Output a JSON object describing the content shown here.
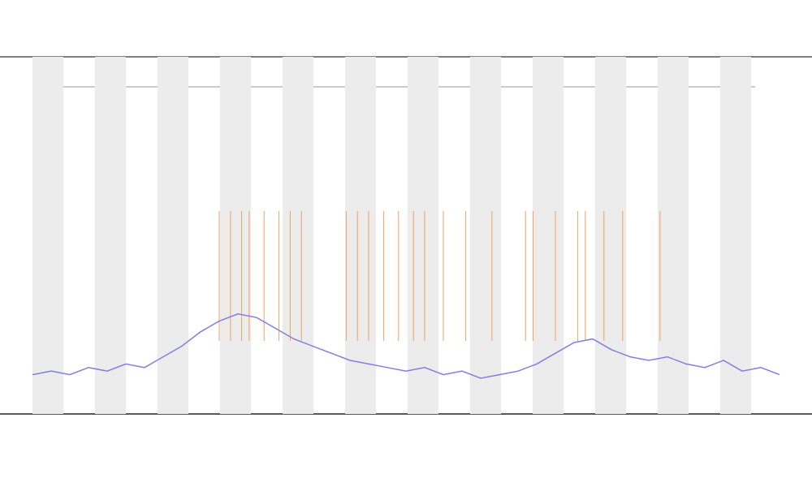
{
  "chart_data": {
    "type": "line",
    "x": [
      0,
      2.5,
      5,
      7.5,
      10,
      12.5,
      15,
      17.5,
      20,
      22.5,
      25,
      27.5,
      30,
      32.5,
      35,
      37.5,
      40,
      42.5,
      45,
      47.5,
      50,
      52.5,
      55,
      57.5,
      60,
      62.5,
      65,
      67.5,
      70,
      72.5,
      75,
      77.5,
      80,
      82.5,
      85,
      87.5,
      90,
      92.5,
      95,
      97.5,
      100
    ],
    "series": [
      {
        "color": "#8080e0",
        "values": [
          11,
          12,
          11,
          13,
          12,
          14,
          13,
          16,
          19,
          23,
          26,
          28,
          27,
          24,
          21,
          19,
          17,
          15,
          14,
          13,
          12,
          13,
          11,
          12,
          10,
          11,
          12,
          14,
          17,
          20,
          21,
          18,
          16,
          15,
          16,
          14,
          13,
          15,
          12,
          13,
          11
        ]
      }
    ],
    "events": {
      "color": "#f0a060",
      "x": [
        25,
        26.5,
        28,
        29,
        31,
        33,
        34.5,
        36,
        42,
        43.5,
        45,
        47,
        49,
        51,
        52.5,
        55,
        58,
        61.5,
        66,
        67,
        70,
        73,
        74,
        76.5,
        79,
        84
      ]
    },
    "xlim": [
      0,
      100
    ],
    "ylim": [
      0,
      100
    ],
    "bands": true
  }
}
